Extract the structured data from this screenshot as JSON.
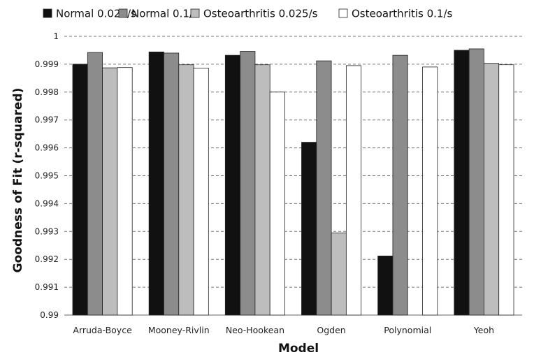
{
  "chart_data": {
    "type": "bar",
    "xlabel": "Model",
    "ylabel": "Goodness of Fit (r-squared)",
    "ylim": [
      0.99,
      1.0
    ],
    "yticks": [
      "0.99",
      "0.991",
      "0.992",
      "0.993",
      "0.994",
      "0.995",
      "0.996",
      "0.997",
      "0.998",
      "0.999",
      "1"
    ],
    "grid": true,
    "legend_position": "top",
    "categories": [
      "Arruda-Boyce",
      "Mooney-Rivlin",
      "Neo-Hookean",
      "Ogden",
      "Polynomial",
      "Yeoh"
    ],
    "series": [
      {
        "name": "Normal 0.025/s",
        "color": "#111111",
        "values": [
          0.999,
          0.99944,
          0.99932,
          0.9962,
          0.99212,
          0.9995
        ]
      },
      {
        "name": "Normal 0.1/s",
        "color": "#8c8c8c",
        "values": [
          0.99942,
          0.9994,
          0.99946,
          0.99912,
          0.99932,
          0.99955
        ]
      },
      {
        "name": "Osteoarthritis 0.025/s",
        "color": "#bdbdbd",
        "values": [
          0.99887,
          0.99898,
          0.99898,
          0.99295,
          null,
          0.99903
        ]
      },
      {
        "name": "Osteoarthritis 0.1/s",
        "color": "#ffffff",
        "values": [
          0.99888,
          0.99886,
          0.998,
          0.99895,
          0.9989,
          0.99898
        ]
      }
    ]
  }
}
